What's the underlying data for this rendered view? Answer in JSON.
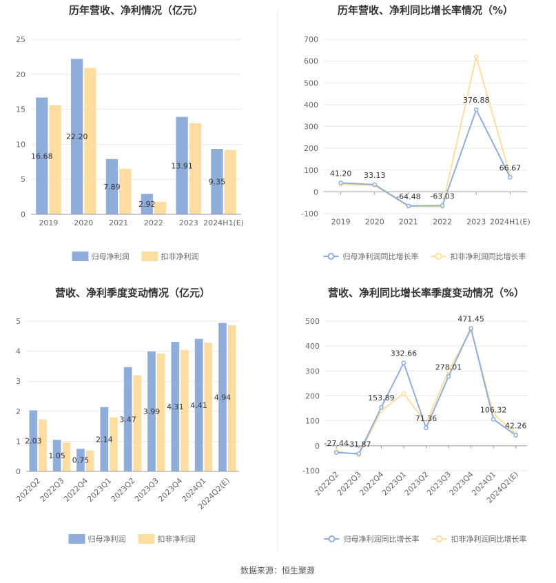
{
  "source_text": "数据来源：恒生聚源",
  "colors": {
    "primary": "#8FADDB",
    "secondary": "#FFDDA0",
    "grid": "#e9e9e9",
    "axis": "#999999"
  },
  "chart_data": [
    {
      "type": "bar",
      "title": "历年营收、净利情况（亿元）",
      "categories": [
        "2019",
        "2020",
        "2021",
        "2022",
        "2023",
        "2024H1(E)"
      ],
      "series": [
        {
          "name": "归母净利润",
          "values": [
            16.68,
            22.2,
            7.89,
            2.92,
            13.91,
            9.35
          ]
        },
        {
          "name": "扣非净利润",
          "values": [
            15.6,
            20.9,
            6.5,
            1.8,
            13.0,
            9.2
          ]
        }
      ],
      "data_labels": [
        "16.68",
        "22.20",
        "7.89",
        "2.92",
        "13.91",
        "9.35"
      ],
      "yticks": [
        "0",
        "5",
        "10",
        "15",
        "20",
        "25"
      ],
      "ylim": [
        0,
        25
      ],
      "legend": "bottom"
    },
    {
      "type": "line",
      "title": "历年营收、净利同比增长率情况（%）",
      "categories": [
        "2019",
        "2020",
        "2021",
        "2022",
        "2023",
        "2024H1(E)"
      ],
      "series": [
        {
          "name": "归母净利润同比增长率",
          "values": [
            41.2,
            33.13,
            -64.48,
            -63.03,
            376.88,
            66.67
          ]
        },
        {
          "name": "扣非净利润同比增长率",
          "values": [
            35,
            30,
            -67,
            -68,
            620,
            75
          ]
        }
      ],
      "data_labels": [
        "41.20",
        "33.13",
        "-64.48",
        "-63.03",
        "376.88",
        "66.67"
      ],
      "yticks": [
        "-100",
        "0",
        "100",
        "200",
        "300",
        "400",
        "500",
        "600",
        "700"
      ],
      "ylim": [
        -100,
        700
      ],
      "legend": "bottom"
    },
    {
      "type": "bar",
      "title": "营收、净利季度变动情况（亿元）",
      "categories": [
        "2022Q2",
        "2022Q3",
        "2022Q4",
        "2023Q1",
        "2023Q2",
        "2023Q3",
        "2023Q4",
        "2024Q1",
        "2024Q2(E)"
      ],
      "series": [
        {
          "name": "归母净利润",
          "values": [
            2.03,
            1.05,
            0.75,
            2.14,
            3.47,
            3.99,
            4.31,
            4.41,
            4.94
          ]
        },
        {
          "name": "扣非净利润",
          "values": [
            1.73,
            0.96,
            0.7,
            1.8,
            3.2,
            3.92,
            4.04,
            4.28,
            4.86
          ]
        }
      ],
      "data_labels": [
        "2.03",
        "1.05",
        "0.75",
        "2.14",
        "3.47",
        "3.99",
        "4.31",
        "4.41",
        "4.94"
      ],
      "yticks": [
        "0",
        "1",
        "2",
        "3",
        "4",
        "5"
      ],
      "ylim": [
        0,
        5
      ],
      "legend": "bottom"
    },
    {
      "type": "line",
      "title": "营收、净利同比增长率季度变动情况（%）",
      "categories": [
        "2022Q2",
        "2022Q3",
        "2022Q4",
        "2023Q1",
        "2023Q2",
        "2023Q3",
        "2023Q4",
        "2024Q1",
        "2024Q2(E)"
      ],
      "series": [
        {
          "name": "归母净利润同比增长率",
          "values": [
            -27.44,
            -31.87,
            153.89,
            332.66,
            71.36,
            278.01,
            471.45,
            106.32,
            42.26
          ]
        },
        {
          "name": "扣非净利润同比增长率",
          "values": [
            -22,
            -36,
            140,
            210,
            90,
            300,
            465,
            128,
            48
          ]
        }
      ],
      "data_labels": [
        "-27.44",
        "-31.87",
        "153.89",
        "332.66",
        "71.36",
        "278.01",
        "471.45",
        "106.32",
        "42.26"
      ],
      "yticks": [
        "-100",
        "0",
        "100",
        "200",
        "300",
        "400",
        "500"
      ],
      "ylim": [
        -100,
        500
      ],
      "legend": "bottom"
    }
  ]
}
